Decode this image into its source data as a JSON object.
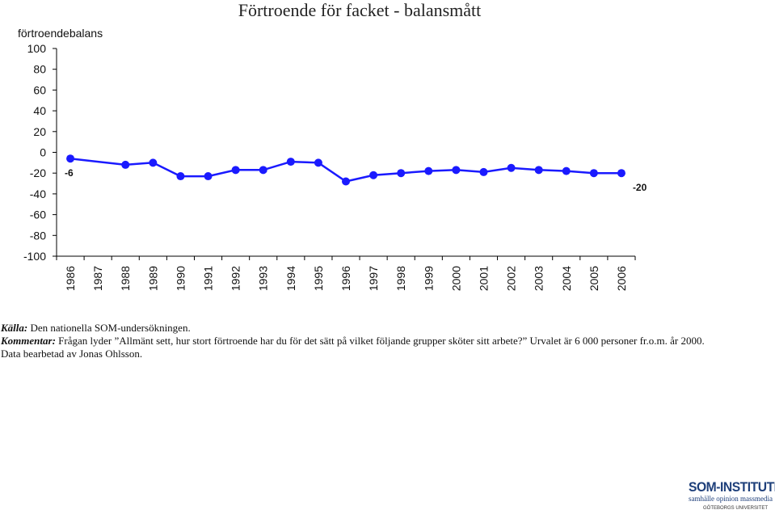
{
  "colors": {
    "series": "#1a1aff",
    "axis": "#000000"
  },
  "chart_data": {
    "type": "line",
    "title": "Förtroende för facket - balansmått",
    "ylabel": "förtroendebalans",
    "ylim": [
      -100,
      100
    ],
    "yticks": [
      100,
      80,
      60,
      40,
      20,
      0,
      -20,
      -40,
      -60,
      -80,
      -100
    ],
    "x": [
      "1986",
      "1987",
      "1988",
      "1989",
      "1990",
      "1991",
      "1992",
      "1993",
      "1994",
      "1995",
      "1996",
      "1997",
      "1998",
      "1999",
      "2000",
      "2001",
      "2002",
      "2003",
      "2004",
      "2005",
      "2006"
    ],
    "series": [
      {
        "values": [
          -6,
          null,
          -12,
          -10,
          -23,
          -23,
          -17,
          -17,
          -9,
          -10,
          -28,
          -22,
          -20,
          -18,
          -17,
          -19,
          -15,
          -17,
          -18,
          -20,
          -20
        ]
      }
    ],
    "data_labels": [
      {
        "x": "1986",
        "text": "-6"
      },
      {
        "x": "2006",
        "text": "-20"
      }
    ],
    "grid": false
  },
  "notes": {
    "source_key": "Källa:",
    "source_text": " Den nationella SOM-undersökningen.",
    "comment_key": "Kommentar:",
    "comment_text": " Frågan lyder ”Allmänt sett, hur stort förtroende har du för det sätt på vilket följande grupper sköter sitt arbete?” Urvalet är 6 000 personer fr.o.m. år 2000.",
    "processed": "Data bearbetad av Jonas Ohlsson."
  },
  "logo": {
    "name": "SOM-INSTITUTET",
    "tagline": "samhälle  opinion  massmedia",
    "university": "GÖTEBORGS UNIVERSITET"
  }
}
